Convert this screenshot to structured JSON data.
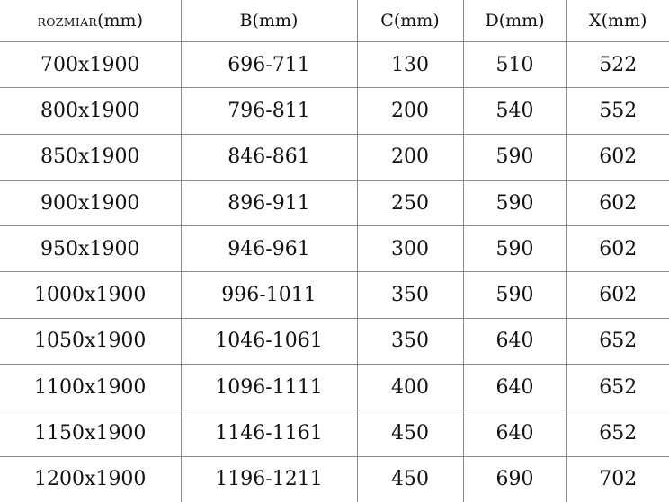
{
  "table": {
    "headers": [
      {
        "label": "ROZMIAR",
        "unit": "(mm)"
      },
      {
        "label": "B",
        "unit": "(mm)"
      },
      {
        "label": "C",
        "unit": "(mm)"
      },
      {
        "label": "D",
        "unit": "(mm)"
      },
      {
        "label": "X",
        "unit": "(mm)"
      }
    ],
    "rows": [
      [
        "700x1900",
        "696-711",
        "130",
        "510",
        "522"
      ],
      [
        "800x1900",
        "796-811",
        "200",
        "540",
        "552"
      ],
      [
        "850x1900",
        "846-861",
        "200",
        "590",
        "602"
      ],
      [
        "900x1900",
        "896-911",
        "250",
        "590",
        "602"
      ],
      [
        "950x1900",
        "946-961",
        "300",
        "590",
        "602"
      ],
      [
        "1000x1900",
        "996-1011",
        "350",
        "590",
        "602"
      ],
      [
        "1050x1900",
        "1046-1061",
        "350",
        "640",
        "652"
      ],
      [
        "1100x1900",
        "1096-1111",
        "400",
        "640",
        "652"
      ],
      [
        "1150x1900",
        "1146-1161",
        "450",
        "640",
        "652"
      ],
      [
        "1200x1900",
        "1196-1211",
        "450",
        "690",
        "702"
      ]
    ]
  }
}
